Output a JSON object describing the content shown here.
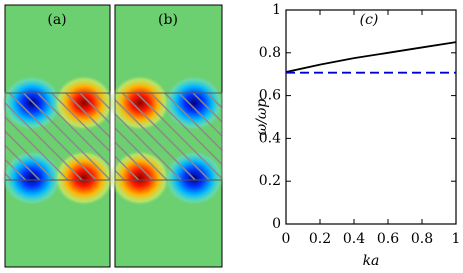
{
  "panels": [
    {
      "label": "(a)"
    },
    {
      "label": "(b)"
    }
  ],
  "chart_data": {
    "type": "line",
    "label": "(c)",
    "xlabel": "ka",
    "ylabel": "ω/ωp",
    "x": [
      0,
      0.2,
      0.4,
      0.6,
      0.8,
      1
    ],
    "series": [
      {
        "color": "#000000",
        "dash": "solid",
        "values": [
          0.71,
          0.745,
          0.775,
          0.8,
          0.825,
          0.85
        ]
      },
      {
        "color": "#0000cc",
        "dash": "dashed",
        "values": [
          0.707,
          0.707,
          0.707,
          0.707,
          0.707,
          0.707
        ]
      }
    ],
    "xlim": [
      0,
      1
    ],
    "ylim": [
      0,
      1
    ],
    "xticks": [
      0,
      0.2,
      0.4,
      0.6,
      0.8,
      1
    ],
    "yticks": [
      0,
      0.2,
      0.4,
      0.6,
      0.8,
      1
    ]
  }
}
